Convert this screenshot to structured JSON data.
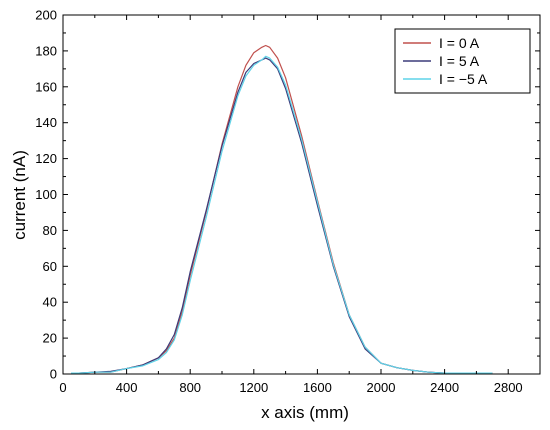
{
  "chart_data": {
    "type": "line",
    "xlabel": "x axis (mm)",
    "ylabel": "current (nA)",
    "xlim": [
      0,
      3000
    ],
    "ylim": [
      0,
      200
    ],
    "x_ticks": [
      "0",
      "400",
      "800",
      "1200",
      "1600",
      "2000",
      "2400",
      "2800"
    ],
    "y_ticks": [
      "0",
      "20",
      "40",
      "60",
      "80",
      "100",
      "120",
      "140",
      "160",
      "180",
      "200"
    ],
    "grid": false,
    "legend_position": "top-right",
    "series": [
      {
        "name": "I =   0 A",
        "color": "#c0504d",
        "x": [
          50,
          100,
          200,
          300,
          400,
          500,
          600,
          650,
          700,
          750,
          800,
          900,
          1000,
          1100,
          1150,
          1200,
          1250,
          1275,
          1300,
          1350,
          1400,
          1500,
          1600,
          1700,
          1800,
          1900,
          2000,
          2100,
          2200,
          2300,
          2400,
          2500,
          2600,
          2700
        ],
        "y": [
          0.5,
          0.5,
          1,
          1,
          3,
          5,
          9,
          13,
          20,
          35,
          55,
          90,
          128,
          160,
          172,
          179,
          182,
          183,
          182,
          176,
          165,
          133,
          97,
          62,
          33,
          15,
          6,
          3.5,
          2,
          1,
          0.5,
          0.5,
          0.5,
          0.5
        ]
      },
      {
        "name": "I =   5 A",
        "color": "#3b3b7a",
        "x": [
          50,
          100,
          200,
          300,
          400,
          500,
          600,
          650,
          700,
          750,
          800,
          900,
          1000,
          1100,
          1150,
          1200,
          1250,
          1275,
          1300,
          1350,
          1400,
          1500,
          1600,
          1700,
          1800,
          1900,
          2000,
          2100,
          2200,
          2300,
          2400,
          2500,
          2600,
          2700
        ],
        "y": [
          0.5,
          0.5,
          1,
          1.5,
          3,
          5,
          9,
          14,
          22,
          37,
          57,
          91,
          127,
          157,
          168,
          173,
          175,
          176,
          175,
          170,
          159,
          129,
          94,
          60,
          32,
          14,
          6,
          3.5,
          2,
          1,
          0.5,
          0.5,
          0.5,
          0.5
        ]
      },
      {
        "name": "I = −5 A",
        "color": "#5fd3e8",
        "x": [
          50,
          100,
          200,
          300,
          400,
          500,
          600,
          650,
          700,
          750,
          800,
          900,
          1000,
          1100,
          1150,
          1200,
          1250,
          1275,
          1300,
          1350,
          1400,
          1500,
          1600,
          1700,
          1800,
          1900,
          2000,
          2100,
          2200,
          2300,
          2400,
          2500,
          2600,
          2700
        ],
        "y": [
          0.5,
          0.5,
          1,
          1,
          3,
          4.5,
          8,
          12,
          19,
          33,
          52,
          87,
          124,
          155,
          166,
          172,
          175,
          177,
          176,
          171,
          161,
          131,
          96,
          61,
          33,
          15,
          6,
          3.5,
          2,
          1,
          0.5,
          0.5,
          0.5,
          0.5
        ]
      }
    ]
  }
}
